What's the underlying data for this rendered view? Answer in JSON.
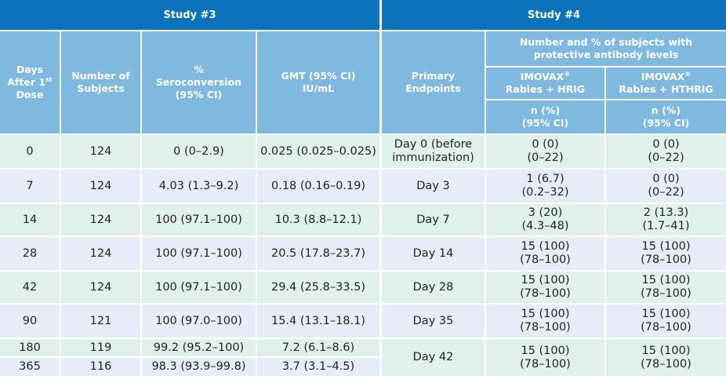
{
  "study3": {
    "title": "Study #3",
    "col_days": [
      "Days",
      "After 1",
      "st",
      "Dose"
    ],
    "col_subjects": [
      "Number of",
      "Subjects"
    ],
    "col_sero": [
      "%",
      "Seroconversion",
      "(95% CI)"
    ],
    "col_gmt": [
      "GMT (95% CI)",
      "IU/mL"
    ],
    "rows": [
      {
        "days": "0",
        "n": "124",
        "sero": "0 (0–2.9)",
        "gmt": "0.025 (0.025–0.025)"
      },
      {
        "days": "7",
        "n": "124",
        "sero": "4.03 (1.3–9.2)",
        "gmt": "0.18 (0.16–0.19)"
      },
      {
        "days": "14",
        "n": "124",
        "sero": "100 (97.1–100)",
        "gmt": "10.3 (8.8–12.1)"
      },
      {
        "days": "28",
        "n": "124",
        "sero": "100 (97.1–100)",
        "gmt": "20.5 (17.8–23.7)"
      },
      {
        "days": "42",
        "n": "124",
        "sero": "100 (97.1–100)",
        "gmt": "29.4 (25.8–33.5)"
      },
      {
        "days": "90",
        "n": "121",
        "sero": "100 (97.0–100)",
        "gmt": "15.4 (13.1–18.1)"
      },
      {
        "days": "180",
        "n": "119",
        "sero": "99.2 (95.2–100)",
        "gmt": "7.2 (6.1–8.6)"
      },
      {
        "days": "365",
        "n": "116",
        "sero": "98.3 (93.9–99.8)",
        "gmt": "3.7 (3.1–4.5)"
      }
    ]
  },
  "study4": {
    "title": "Study #4",
    "col_endpoints": [
      "Primary",
      "Endpoints"
    ],
    "col_group": [
      "Number and % of subjects with",
      "protective antibody levels"
    ],
    "col_hrig": [
      "IMOVAX",
      "®",
      "Rabies + HRIG"
    ],
    "col_hthrig": [
      "IMOVAX",
      "®",
      "Rabies + HTHRIG"
    ],
    "col_n": [
      "n (%)",
      "(95% CI)"
    ],
    "rows": [
      {
        "endpoint": [
          "Day 0 (before",
          "immunization)"
        ],
        "hrig": [
          "0 (0)",
          "(0–22)"
        ],
        "hthrig": [
          "0 (0)",
          "(0–22)"
        ]
      },
      {
        "endpoint": [
          "Day 3"
        ],
        "hrig": [
          "1 (6.7)",
          "(0.2–32)"
        ],
        "hthrig": [
          "0 (0)",
          "(0–22)"
        ]
      },
      {
        "endpoint": [
          "Day 7"
        ],
        "hrig": [
          "3 (20)",
          "(4.3–48)"
        ],
        "hthrig": [
          "2 (13.3)",
          "(1.7–41)"
        ]
      },
      {
        "endpoint": [
          "Day 14"
        ],
        "hrig": [
          "15 (100)",
          "(78–100)"
        ],
        "hthrig": [
          "15 (100)",
          "(78–100)"
        ]
      },
      {
        "endpoint": [
          "Day 28"
        ],
        "hrig": [
          "15 (100)",
          "(78–100)"
        ],
        "hthrig": [
          "15 (100)",
          "(78–100)"
        ]
      },
      {
        "endpoint": [
          "Day 35"
        ],
        "hrig": [
          "15 (100)",
          "(78–100)"
        ],
        "hthrig": [
          "15 (100)",
          "(78–100)"
        ]
      },
      {
        "endpoint": [
          "Day 42"
        ],
        "hrig": [
          "15 (100)",
          "(78–100)"
        ],
        "hthrig": [
          "15 (100)",
          "(78–100)"
        ]
      }
    ]
  }
}
